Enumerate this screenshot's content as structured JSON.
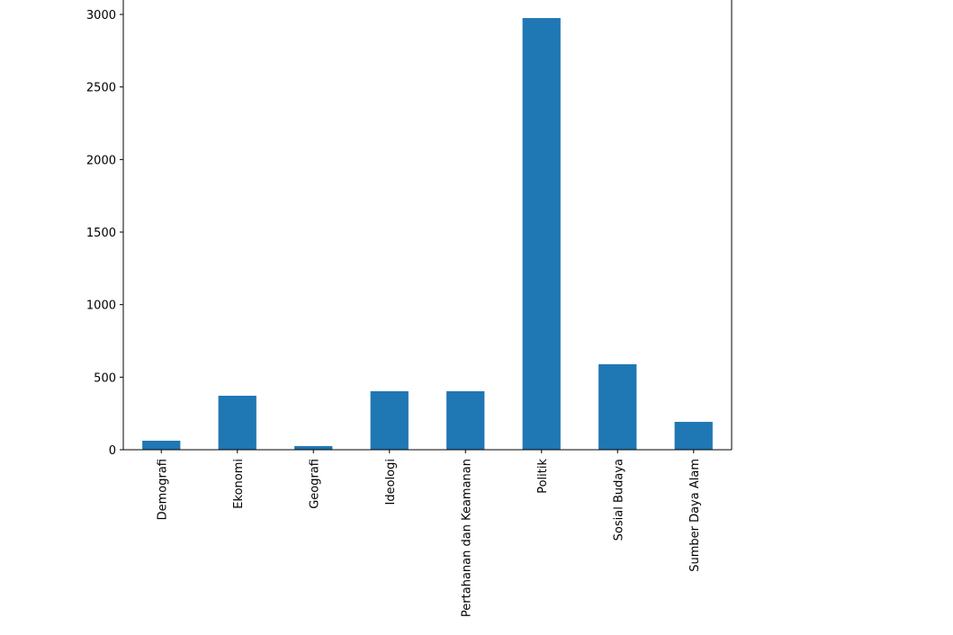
{
  "chart_data": {
    "type": "bar",
    "categories": [
      "Demografi",
      "Ekonomi",
      "Geografi",
      "Ideologi",
      "Pertahanan dan Keamanan",
      "Politik",
      "Sosial Budaya",
      "Sumber Daya Alam"
    ],
    "values": [
      62,
      372,
      25,
      403,
      403,
      2975,
      589,
      192
    ],
    "color": "#1f77b4",
    "ylim": [
      0,
      3118
    ],
    "yticks": [
      0,
      500,
      1000,
      1500,
      2000,
      2500,
      3000
    ],
    "grid": false
  }
}
